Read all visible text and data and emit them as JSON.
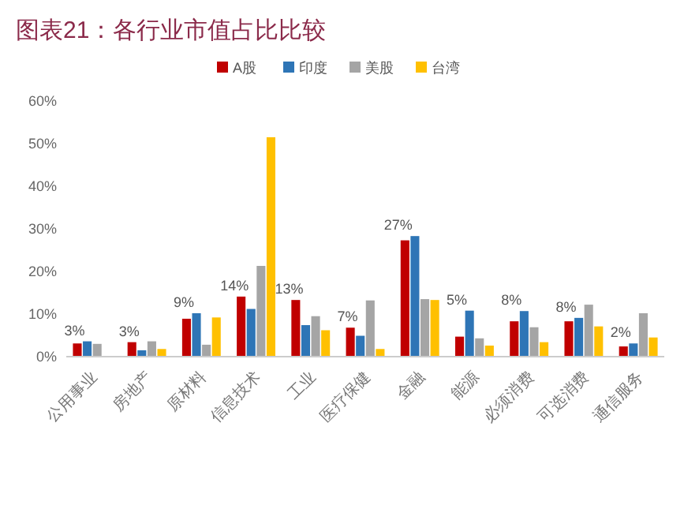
{
  "chart_data": {
    "type": "bar",
    "title": "图表21：各行业市值占比比较",
    "categories": [
      "公用事业",
      "房地产",
      "原材料",
      "信息技术",
      "工业",
      "医疗保健",
      "金融",
      "能源",
      "必须消费",
      "可选消费",
      "通信服务"
    ],
    "series": [
      {
        "name": "A股",
        "color": "#c00000",
        "values": [
          3.1,
          3.4,
          8.9,
          14.1,
          13.3,
          6.8,
          27.3,
          4.7,
          8.3,
          8.3,
          2.4
        ],
        "value_labels": [
          "3%",
          "3%",
          "9%",
          "14%",
          "13%",
          "7%",
          "27%",
          "5%",
          "8%",
          "8%",
          "2%"
        ]
      },
      {
        "name": "印度",
        "color": "#2e75b6",
        "values": [
          3.6,
          1.5,
          10.2,
          11.2,
          7.4,
          4.9,
          28.3,
          10.8,
          10.7,
          9.1,
          3.1
        ]
      },
      {
        "name": "美股",
        "color": "#a5a5a5",
        "values": [
          3.0,
          3.6,
          2.8,
          21.3,
          9.5,
          13.2,
          13.5,
          4.3,
          6.9,
          12.2,
          10.2
        ]
      },
      {
        "name": "台湾",
        "color": "#ffc000",
        "values": [
          null,
          1.8,
          9.2,
          51.5,
          6.2,
          1.8,
          13.3,
          2.6,
          3.4,
          7.1,
          4.5
        ]
      }
    ],
    "ylim": [
      0,
      60
    ],
    "yticks": [
      {
        "value": 0,
        "label": "0%"
      },
      {
        "value": 10,
        "label": "10%"
      },
      {
        "value": 20,
        "label": "20%"
      },
      {
        "value": 30,
        "label": "30%"
      },
      {
        "value": 40,
        "label": "40%"
      },
      {
        "value": 50,
        "label": "50%"
      },
      {
        "value": 60,
        "label": "60%"
      }
    ],
    "legend": "top",
    "grid": false
  }
}
